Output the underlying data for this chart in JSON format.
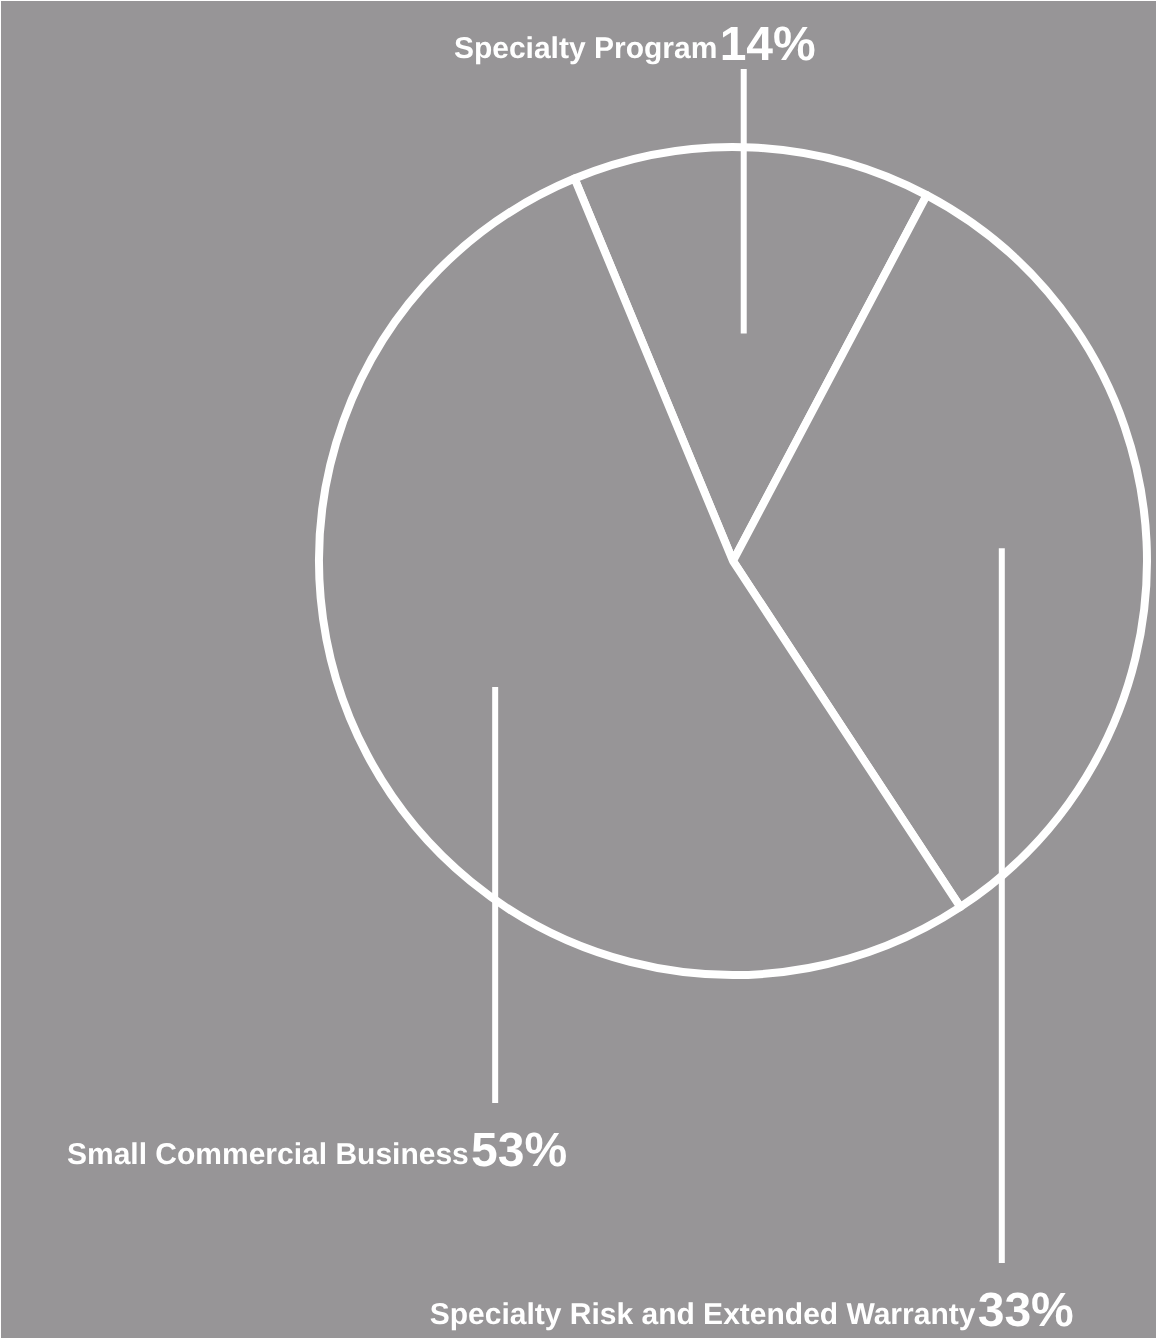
{
  "chart_data": {
    "type": "pie",
    "categories": [
      "Specialty Program",
      "Specialty Risk and Extended Warranty",
      "Small Commercial Business"
    ],
    "values": [
      14,
      33,
      53
    ],
    "value_labels": [
      "14%",
      "33%",
      "53%"
    ],
    "colors": [
      "#979597",
      "#979597",
      "#979597"
    ]
  }
}
